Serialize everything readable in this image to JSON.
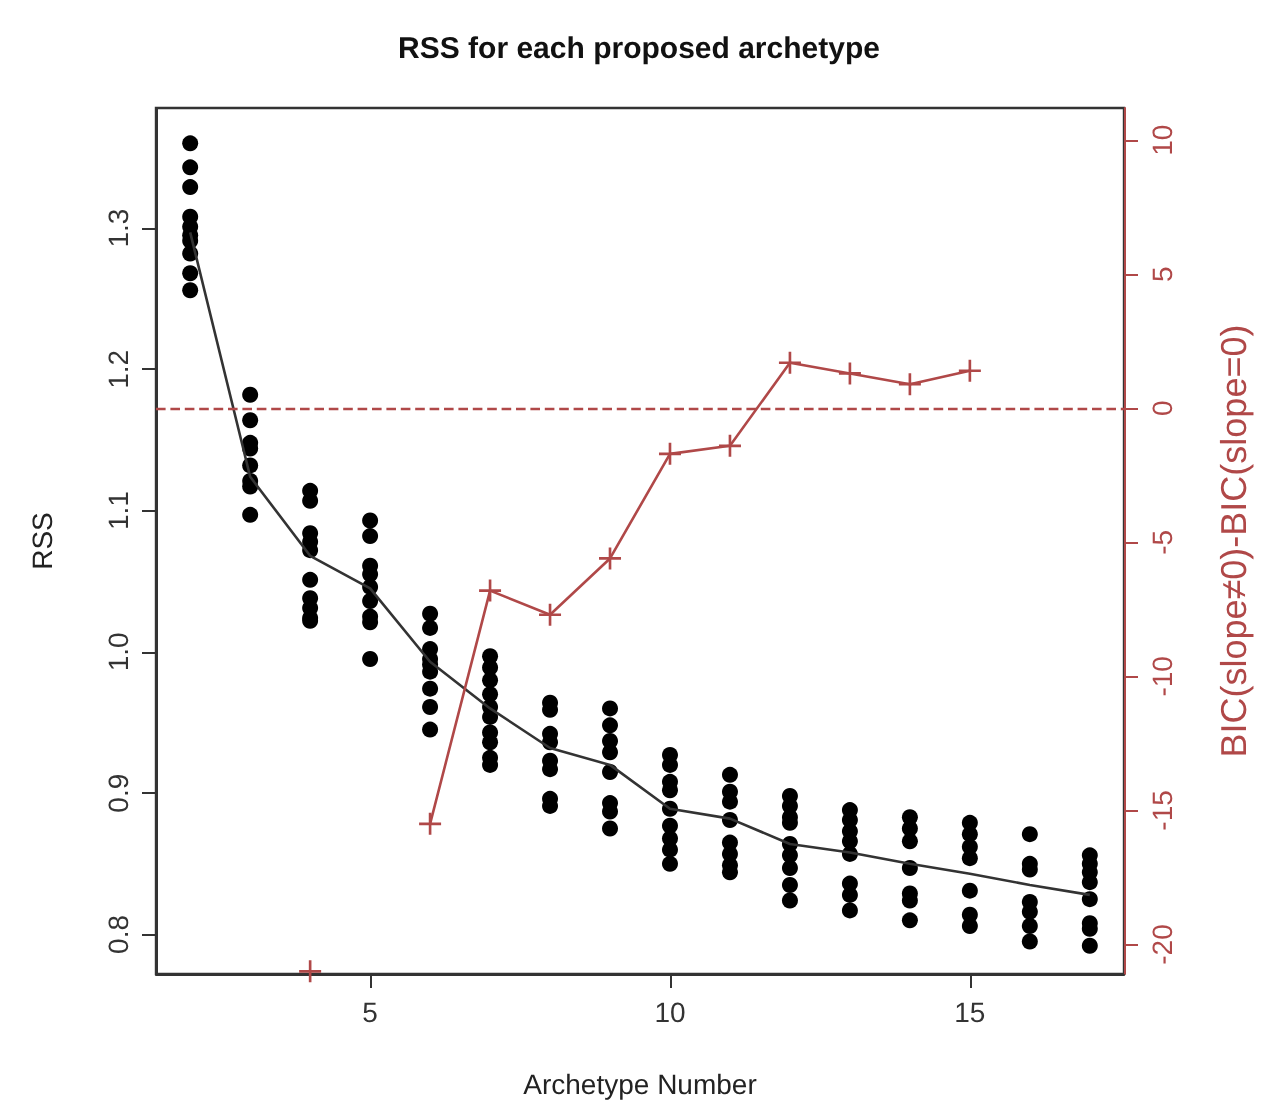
{
  "chart_data": {
    "type": "scatter",
    "title": "RSS for each proposed archetype",
    "xlabel": "Archetype Number",
    "ylabel": "RSS",
    "y2label": "BIC(slope≠0)-BIC(slope=0)",
    "xlim": [
      1.43,
      17.57
    ],
    "xticks": [
      5,
      10,
      15
    ],
    "ylim": [
      0.772,
      1.385
    ],
    "yticks": [
      {
        "value": 0.8,
        "label": "0.8"
      },
      {
        "value": 0.9,
        "label": "0.9"
      },
      {
        "value": 1,
        "label": "1.0"
      },
      {
        "value": 1.1,
        "label": "1.1"
      },
      {
        "value": 1.2,
        "label": "1.2"
      },
      {
        "value": 1.3,
        "label": "1.3"
      }
    ],
    "y2lim": [
      -21.1,
      11.2
    ],
    "y2ticks": [
      -20,
      -15,
      -10,
      -5,
      0,
      5,
      10
    ],
    "grid": false,
    "ref_lines": [
      {
        "axis": "y2",
        "value": 0,
        "color": "#b04848",
        "line_style": "dashed"
      }
    ],
    "series": [
      {
        "color": "#000000",
        "marker": "circle",
        "x": [
          2,
          2,
          2,
          2,
          2,
          2,
          2,
          2,
          2,
          2,
          3,
          3,
          3,
          3,
          3,
          3,
          3,
          3,
          4,
          4,
          4,
          4,
          4,
          4,
          4,
          4,
          4,
          4,
          5,
          5,
          5,
          5,
          5,
          5,
          5,
          5,
          5,
          6,
          6,
          6,
          6,
          6,
          6,
          6,
          6,
          6,
          7,
          7,
          7,
          7,
          7,
          7,
          7,
          7,
          7,
          7,
          8,
          8,
          8,
          8,
          8,
          8,
          8,
          8,
          9,
          9,
          9,
          9,
          9,
          9,
          9,
          9,
          10,
          10,
          10,
          10,
          10,
          10,
          10,
          10,
          10,
          11,
          11,
          11,
          11,
          11,
          11,
          11,
          11,
          12,
          12,
          12,
          12,
          12,
          12,
          12,
          12,
          12,
          13,
          13,
          13,
          13,
          13,
          13,
          13,
          13,
          14,
          14,
          14,
          14,
          14,
          14,
          14,
          15,
          15,
          15,
          15,
          15,
          15,
          15,
          16,
          16,
          16,
          16,
          16,
          16,
          16,
          17,
          17,
          17,
          17,
          17,
          17,
          17,
          17
        ],
        "values": [
          1.36,
          1.343,
          1.329,
          1.308,
          1.301,
          1.295,
          1.291,
          1.282,
          1.268,
          1.256,
          1.182,
          1.164,
          1.148,
          1.144,
          1.132,
          1.121,
          1.117,
          1.097,
          1.114,
          1.107,
          1.084,
          1.078,
          1.072,
          1.051,
          1.038,
          1.031,
          1.024,
          1.022,
          1.093,
          1.082,
          1.061,
          1.055,
          1.046,
          1.036,
          1.025,
          1.021,
          0.995,
          1.027,
          1.017,
          1.002,
          0.995,
          0.991,
          0.986,
          0.974,
          0.961,
          0.945,
          0.997,
          0.989,
          0.98,
          0.97,
          0.961,
          0.954,
          0.943,
          0.936,
          0.925,
          0.92,
          0.964,
          0.959,
          0.942,
          0.936,
          0.923,
          0.917,
          0.896,
          0.891,
          0.96,
          0.948,
          0.937,
          0.929,
          0.915,
          0.893,
          0.887,
          0.875,
          0.927,
          0.92,
          0.908,
          0.902,
          0.889,
          0.877,
          0.868,
          0.86,
          0.85,
          0.913,
          0.901,
          0.894,
          0.881,
          0.865,
          0.857,
          0.849,
          0.844,
          0.898,
          0.891,
          0.883,
          0.879,
          0.864,
          0.856,
          0.847,
          0.835,
          0.824,
          0.888,
          0.881,
          0.873,
          0.866,
          0.857,
          0.836,
          0.828,
          0.817,
          0.883,
          0.875,
          0.866,
          0.847,
          0.829,
          0.824,
          0.81,
          0.879,
          0.871,
          0.862,
          0.854,
          0.831,
          0.814,
          0.806,
          0.871,
          0.85,
          0.846,
          0.823,
          0.816,
          0.806,
          0.795,
          0.856,
          0.85,
          0.844,
          0.837,
          0.825,
          0.808,
          0.804,
          0.792
        ]
      },
      {
        "type": "line",
        "color": "#333333",
        "marker": "none",
        "x": [
          2,
          3,
          4,
          5,
          6,
          7,
          8,
          9,
          10,
          11,
          12,
          13,
          14,
          15,
          16,
          17
        ],
        "values": [
          1.297,
          1.124,
          1.068,
          1.045,
          0.993,
          0.96,
          0.932,
          0.92,
          0.889,
          0.882,
          0.864,
          0.858,
          0.85,
          0.843,
          0.835,
          0.828
        ]
      },
      {
        "type": "line",
        "color": "#b04848",
        "marker": "cross",
        "axis": "y2",
        "x": [
          4,
          5,
          6,
          7,
          8,
          9,
          10,
          11,
          12,
          13,
          14,
          15
        ],
        "values": [
          -21.0,
          null,
          -15.5,
          -6.8,
          -7.7,
          -5.6,
          -1.7,
          -1.4,
          1.7,
          1.3,
          0.9,
          1.4
        ]
      }
    ]
  }
}
